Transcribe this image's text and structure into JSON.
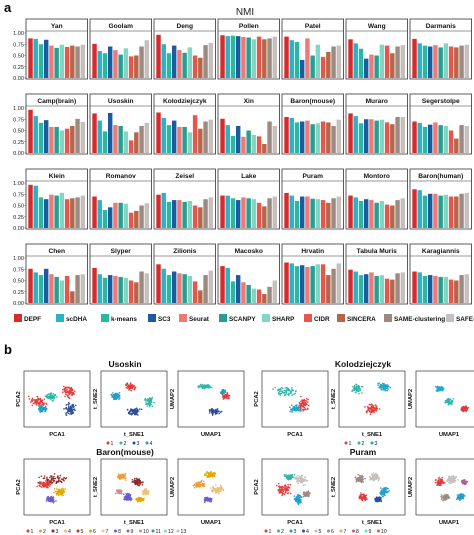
{
  "panel_labels": {
    "a": "a",
    "b": "b"
  },
  "metric_title": "NMI",
  "methods": [
    "DEPF",
    "scDHA",
    "k-means",
    "SC3",
    "Seurat",
    "SCANPY",
    "SHARP",
    "CIDR",
    "SINCERA",
    "SAME-clustering",
    "SAFE-clustering"
  ],
  "method_colors": [
    "#d62b2b",
    "#2ab2c9",
    "#27b8a4",
    "#1f5a9e",
    "#f07878",
    "#2a9d8f",
    "#7fd6c5",
    "#e4574a",
    "#b5654a",
    "#9c8a82",
    "#c5c0bd"
  ],
  "y_ticks": [
    "0.00",
    "0.25",
    "0.50",
    "0.75",
    "1.00"
  ],
  "chart_data": {
    "type": "bar",
    "title": "NMI",
    "ylim": [
      0,
      1
    ],
    "series_names": [
      "DEPF",
      "scDHA",
      "k-means",
      "SC3",
      "Seurat",
      "SCANPY",
      "SHARP",
      "CIDR",
      "SINCERA",
      "SAME-clustering",
      "SAFE-clustering"
    ],
    "panels": [
      {
        "name": "Yan",
        "values": [
          0.88,
          0.87,
          0.75,
          0.85,
          0.72,
          0.67,
          0.74,
          0.69,
          0.72,
          0.7,
          0.74
        ]
      },
      {
        "name": "Goolam",
        "values": [
          0.76,
          0.6,
          0.55,
          0.7,
          0.62,
          0.52,
          0.66,
          0.48,
          0.5,
          0.7,
          0.84
        ]
      },
      {
        "name": "Deng",
        "values": [
          0.96,
          0.75,
          0.55,
          0.72,
          0.62,
          0.56,
          0.68,
          0.5,
          0.45,
          0.73,
          0.78
        ]
      },
      {
        "name": "Pollen",
        "values": [
          0.95,
          0.93,
          0.94,
          0.93,
          0.91,
          0.9,
          0.86,
          0.92,
          0.86,
          0.88,
          0.92
        ]
      },
      {
        "name": "Patel",
        "values": [
          0.92,
          0.84,
          0.8,
          0.4,
          0.88,
          0.5,
          0.74,
          0.47,
          0.58,
          0.7,
          0.72
        ]
      },
      {
        "name": "Wang",
        "values": [
          0.86,
          0.77,
          0.65,
          0.43,
          0.52,
          0.5,
          0.74,
          0.72,
          0.55,
          0.7,
          0.73
        ]
      },
      {
        "name": "Darmanis",
        "values": [
          0.87,
          0.77,
          0.72,
          0.7,
          0.73,
          0.68,
          0.77,
          0.7,
          0.68,
          0.72,
          0.74
        ]
      },
      {
        "name": "Camp(brain)",
        "values": [
          0.96,
          0.82,
          0.67,
          0.73,
          0.58,
          0.58,
          0.5,
          0.54,
          0.6,
          0.76,
          0.69
        ]
      },
      {
        "name": "Usoskin",
        "values": [
          0.88,
          0.72,
          0.48,
          0.89,
          0.62,
          0.6,
          0.48,
          0.28,
          0.46,
          0.6,
          0.67
        ]
      },
      {
        "name": "Kolodziejczyk",
        "values": [
          0.9,
          0.78,
          0.62,
          0.72,
          0.58,
          0.58,
          0.46,
          0.84,
          0.54,
          0.7,
          0.74
        ]
      },
      {
        "name": "Xin",
        "values": [
          0.76,
          0.62,
          0.38,
          0.6,
          0.36,
          0.5,
          0.4,
          0.37,
          0.2,
          0.7,
          0.6
        ]
      },
      {
        "name": "Baron(mouse)",
        "values": [
          0.8,
          0.78,
          0.68,
          0.7,
          0.72,
          0.64,
          0.66,
          0.7,
          0.68,
          0.6,
          0.74
        ]
      },
      {
        "name": "Muraro",
        "values": [
          0.88,
          0.82,
          0.66,
          0.75,
          0.75,
          0.72,
          0.74,
          0.68,
          0.64,
          0.8,
          0.8
        ]
      },
      {
        "name": "Segerstolpe",
        "values": [
          0.7,
          0.67,
          0.58,
          0.63,
          0.68,
          0.62,
          0.6,
          0.5,
          0.32,
          0.62,
          0.6
        ]
      },
      {
        "name": "Klein",
        "values": [
          0.96,
          0.94,
          0.68,
          0.64,
          0.74,
          0.72,
          0.78,
          0.64,
          0.66,
          0.68,
          0.72
        ]
      },
      {
        "name": "Romanov",
        "values": [
          0.7,
          0.62,
          0.4,
          0.46,
          0.56,
          0.56,
          0.54,
          0.34,
          0.38,
          0.5,
          0.55
        ]
      },
      {
        "name": "Zeisel",
        "values": [
          0.74,
          0.78,
          0.58,
          0.62,
          0.62,
          0.58,
          0.6,
          0.5,
          0.46,
          0.64,
          0.68
        ]
      },
      {
        "name": "Lake",
        "values": [
          0.72,
          0.72,
          0.66,
          0.62,
          0.68,
          0.66,
          0.64,
          0.56,
          0.48,
          0.66,
          0.7
        ]
      },
      {
        "name": "Puram",
        "values": [
          0.78,
          0.72,
          0.6,
          0.7,
          0.7,
          0.65,
          0.64,
          0.62,
          0.56,
          0.66,
          0.7
        ]
      },
      {
        "name": "Montoro",
        "values": [
          0.72,
          0.68,
          0.6,
          0.64,
          0.62,
          0.56,
          0.6,
          0.52,
          0.5,
          0.62,
          0.66
        ]
      },
      {
        "name": "Baron(human)",
        "values": [
          0.86,
          0.84,
          0.72,
          0.76,
          0.76,
          0.72,
          0.74,
          0.7,
          0.7,
          0.76,
          0.78
        ]
      },
      {
        "name": "Chen",
        "values": [
          0.76,
          0.68,
          0.62,
          0.76,
          0.64,
          0.58,
          0.5,
          0.6,
          0.26,
          0.62,
          0.64
        ]
      },
      {
        "name": "Slyper",
        "values": [
          0.78,
          0.64,
          0.56,
          0.62,
          0.6,
          0.58,
          0.56,
          0.5,
          0.46,
          0.7,
          0.66
        ]
      },
      {
        "name": "Zilionis",
        "values": [
          0.86,
          0.76,
          0.62,
          0.7,
          0.66,
          0.64,
          0.6,
          0.48,
          0.28,
          0.62,
          0.72
        ]
      },
      {
        "name": "Macosko",
        "values": [
          0.82,
          0.78,
          0.48,
          0.62,
          0.46,
          0.4,
          0.32,
          0.3,
          0.2,
          0.36,
          0.5
        ]
      },
      {
        "name": "Hrvatin",
        "values": [
          0.9,
          0.88,
          0.82,
          0.84,
          0.8,
          0.82,
          0.86,
          0.86,
          0.62,
          0.76,
          0.88
        ]
      },
      {
        "name": "Tabula Muris",
        "values": [
          0.74,
          0.7,
          0.62,
          0.64,
          0.68,
          0.6,
          0.62,
          0.54,
          0.52,
          0.66,
          0.68
        ]
      },
      {
        "name": "Karagiannis",
        "values": [
          0.7,
          0.68,
          0.6,
          0.62,
          0.6,
          0.58,
          0.58,
          0.52,
          0.5,
          0.62,
          0.64
        ]
      }
    ]
  },
  "scatter_groups": [
    {
      "title": "Usoskin",
      "axes": [
        [
          "PCA1",
          "PCA2"
        ],
        [
          "t_SNE1",
          "t_SNE2"
        ],
        [
          "UMAP1",
          "UMAP2"
        ]
      ],
      "legend": [
        "1",
        "2",
        "3",
        "4"
      ],
      "legend_colors": [
        "#e23b3b",
        "#2fb6a8",
        "#2a4e9a",
        "#1f9ec9"
      ]
    },
    {
      "title": "Kolodziejczyk",
      "axes": [
        [
          "PCA1",
          "PCA2"
        ],
        [
          "t_SNE1",
          "t_SNE2"
        ],
        [
          "UMAP1",
          "UMAP2"
        ]
      ],
      "legend": [
        "1",
        "2",
        "3"
      ],
      "legend_colors": [
        "#e23b3b",
        "#2fb6a8",
        "#1fa8c9"
      ]
    },
    {
      "title": "Baron(mouse)",
      "axes": [
        [
          "PCA1",
          "PCA2"
        ],
        [
          "t_SNE1",
          "t_SNE2"
        ],
        [
          "UMAP1",
          "UMAP2"
        ]
      ],
      "legend": [
        "1",
        "2",
        "3",
        "4",
        "5",
        "6",
        "7",
        "8",
        "9",
        "10",
        "11",
        "12",
        "13"
      ],
      "legend_colors": [
        "#e23b3b",
        "#f29b38",
        "#8b2a2a",
        "#e8c27a",
        "#c0392b",
        "#e0a800",
        "#f5cc7f",
        "#6a5acd",
        "#b06090",
        "#d58a94",
        "#2a9d8f",
        "#7fd6c5",
        "#c5c0bd"
      ]
    },
    {
      "title": "Puram",
      "axes": [
        [
          "PCA1",
          "PCA2"
        ],
        [
          "t_SNE1",
          "t_SNE2"
        ],
        [
          "UMAP1",
          "UMAP2"
        ]
      ],
      "legend": [
        "1",
        "2",
        "3",
        "4",
        "5",
        "6",
        "7",
        "8",
        "9",
        "10"
      ],
      "legend_colors": [
        "#e23b3b",
        "#2fb6a8",
        "#1f9ec9",
        "#2a4e9a",
        "#c5c0bd",
        "#9c8a82",
        "#d8b06a",
        "#b06090",
        "#7fd6c5",
        "#e4574a"
      ]
    }
  ]
}
